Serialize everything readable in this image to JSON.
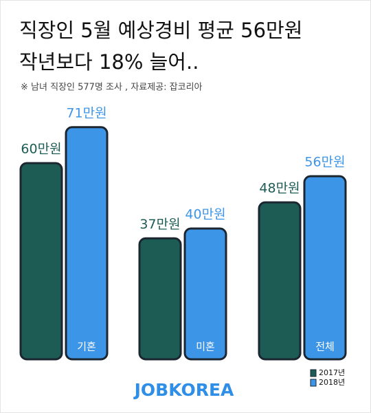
{
  "chart_data": {
    "type": "bar",
    "title": "직장인 5월 예상경비 평균 56만원",
    "subtitle": "작년보다 18% 늘어..",
    "note": "※ 남녀 직장인 577명 조사 , 자료제공: 잡코리아",
    "brand": "JOBKOREA",
    "categories": [
      "기혼",
      "미혼",
      "전체"
    ],
    "series": [
      {
        "name": "2017년",
        "color": "#1d5c55",
        "values": [
          60,
          37,
          48
        ],
        "value_labels": [
          "60만원",
          "37만원",
          "48만원"
        ]
      },
      {
        "name": "2018년",
        "color": "#3d95e8",
        "values": [
          71,
          40,
          56
        ],
        "value_labels": [
          "71만원",
          "40만원",
          "56만원"
        ]
      }
    ],
    "legend": "bottom-right"
  }
}
